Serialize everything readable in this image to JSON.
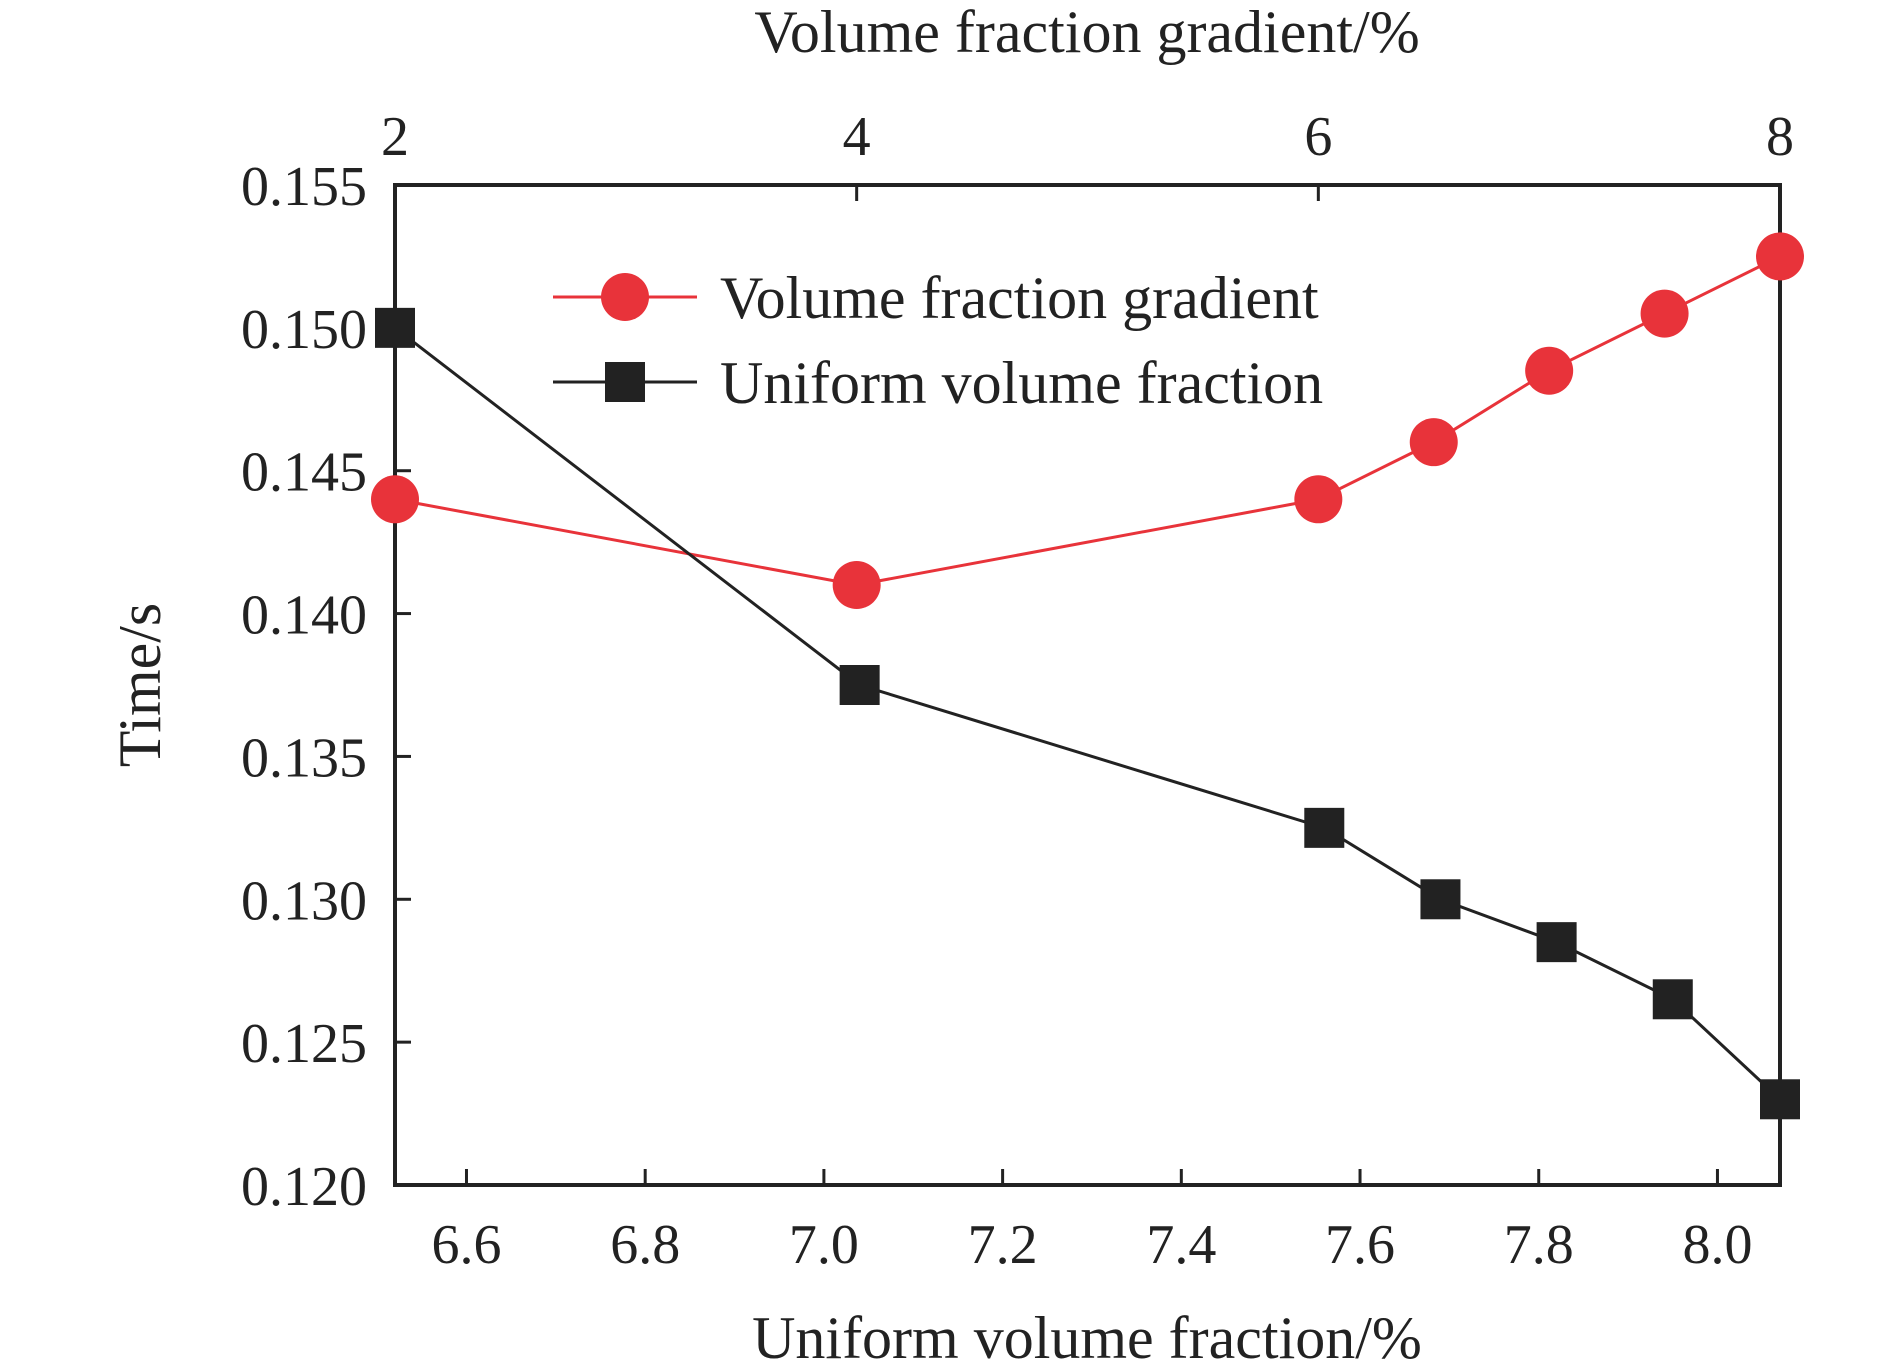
{
  "chart_data": {
    "type": "line",
    "title": "",
    "xlabel": "Uniform volume fraction/%",
    "x2label": "Volume fraction gradient/%",
    "ylabel": "Time/s",
    "xlim": [
      6.52,
      8.07
    ],
    "x2lim": [
      2,
      8
    ],
    "ylim": [
      0.12,
      0.155
    ],
    "xticks": [
      6.6,
      6.8,
      7.0,
      7.2,
      7.4,
      7.6,
      7.8,
      8.0
    ],
    "xtick_labels": [
      "6.6",
      "6.8",
      "7.0",
      "7.2",
      "7.4",
      "7.6",
      "7.8",
      "8.0"
    ],
    "x2ticks": [
      2,
      4,
      6,
      8
    ],
    "x2tick_labels": [
      "2",
      "4",
      "6",
      "8"
    ],
    "yticks": [
      0.12,
      0.125,
      0.13,
      0.135,
      0.14,
      0.145,
      0.15,
      0.155
    ],
    "ytick_labels": [
      "0.120",
      "0.125",
      "0.130",
      "0.135",
      "0.140",
      "0.145",
      "0.150",
      "0.155"
    ],
    "grid": false,
    "legend_position": "top-center",
    "series": [
      {
        "name": "Volume fraction gradient",
        "axis": "top",
        "color": "#e8333a",
        "marker": "circle",
        "x": [
          2,
          4,
          6,
          6.5,
          7,
          7.5,
          8
        ],
        "values": [
          0.144,
          0.141,
          0.144,
          0.146,
          0.1485,
          0.1505,
          0.1525
        ]
      },
      {
        "name": "Uniform volume fraction",
        "axis": "bottom",
        "color": "#222222",
        "marker": "square",
        "x": [
          6.52,
          7.04,
          7.56,
          7.69,
          7.82,
          7.95,
          8.07
        ],
        "values": [
          0.15,
          0.1375,
          0.1325,
          0.13,
          0.1285,
          0.1265,
          0.123
        ]
      }
    ]
  }
}
